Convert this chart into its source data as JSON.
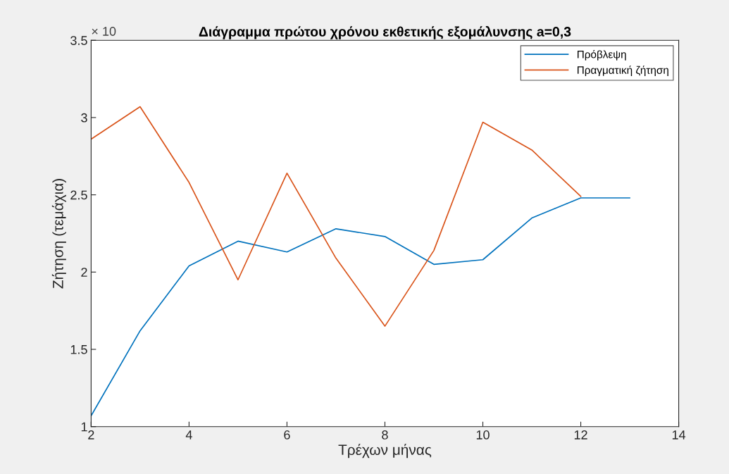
{
  "chart_data": {
    "type": "line",
    "title": "Διάγραμμα πρώτου χρόνου εκθετικής εξομάλυνσης a=0,3",
    "xlabel": "Τρέχων μήνας",
    "ylabel": "Ζήτηση (τεμάχια)",
    "annotations": [
      "× 10"
    ],
    "series": [
      {
        "name": "Πρόβλεψη",
        "color": "#0072bd",
        "x": [
          2,
          3,
          4,
          5,
          6,
          7,
          8,
          9,
          10,
          11,
          12,
          13
        ],
        "values": [
          1.07,
          1.62,
          2.04,
          2.2,
          2.13,
          2.28,
          2.23,
          2.05,
          2.08,
          2.35,
          2.48,
          2.48
        ]
      },
      {
        "name": "Πραγματική ζήτηση",
        "color": "#d95319",
        "x": [
          2,
          3,
          4,
          5,
          6,
          7,
          8,
          9,
          10,
          11,
          12
        ],
        "values": [
          2.86,
          3.07,
          2.58,
          1.95,
          2.64,
          2.09,
          1.65,
          2.14,
          2.97,
          2.79,
          2.49
        ]
      }
    ],
    "xlim": [
      2,
      14
    ],
    "xticks": [
      2,
      4,
      6,
      8,
      10,
      12,
      14
    ],
    "ylim": [
      1,
      3.5
    ],
    "yticks": [
      1,
      1.5,
      2,
      2.5,
      3,
      3.5
    ],
    "grid": false,
    "legend": "top right"
  }
}
